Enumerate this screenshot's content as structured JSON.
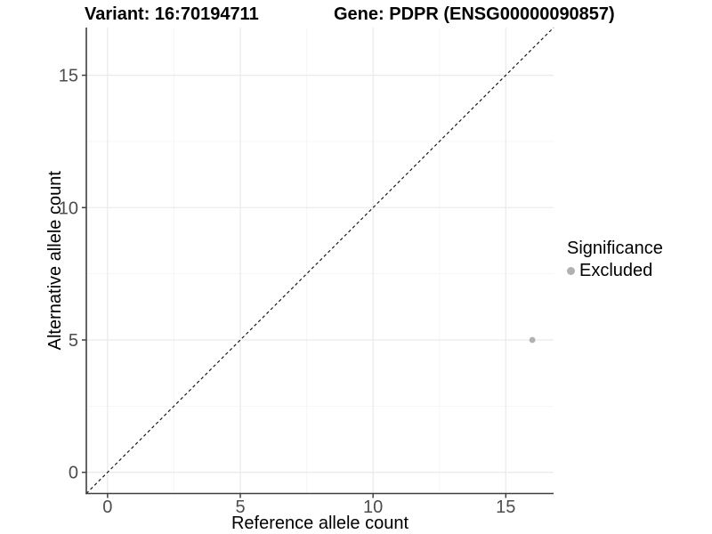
{
  "header": {
    "variant_title": "Variant: 16:70194711",
    "gene_title": "Gene: PDPR (ENSG00000090857)"
  },
  "legend": {
    "title": "Significance",
    "entries": [
      {
        "label": "Excluded",
        "color": "#b1b1b1"
      }
    ]
  },
  "chart_data": {
    "type": "scatter",
    "title": "Variant: 16:70194711    Gene: PDPR (ENSG00000090857)",
    "xlabel": "Reference allele count",
    "ylabel": "Alternative allele count",
    "xlim": [
      -0.8,
      16.8
    ],
    "ylim": [
      -0.8,
      16.8
    ],
    "x_ticks": [
      0,
      5,
      10,
      15
    ],
    "y_ticks": [
      0,
      5,
      10,
      15
    ],
    "x_minor_ticks": [
      2.5,
      7.5,
      12.5
    ],
    "y_minor_ticks": [
      2.5,
      7.5,
      12.5
    ],
    "grid": true,
    "legend_position": "right",
    "series": [
      {
        "name": "Excluded",
        "color": "#b1b1b1",
        "points": [
          {
            "x": 16,
            "y": 5
          }
        ]
      }
    ],
    "reference_line": {
      "type": "identity",
      "slope": 1,
      "intercept": 0,
      "style": "dashed",
      "color": "#1a1a1a"
    },
    "colors": {
      "background": "#ffffff",
      "grid_major": "#ebebeb",
      "grid_minor": "#f6f6f6",
      "axis_line": "#404040",
      "tick_mark": "#404040",
      "tick_label": "#4d4d4d",
      "axis_title": "#000000",
      "point": "#b1b1b1"
    }
  }
}
